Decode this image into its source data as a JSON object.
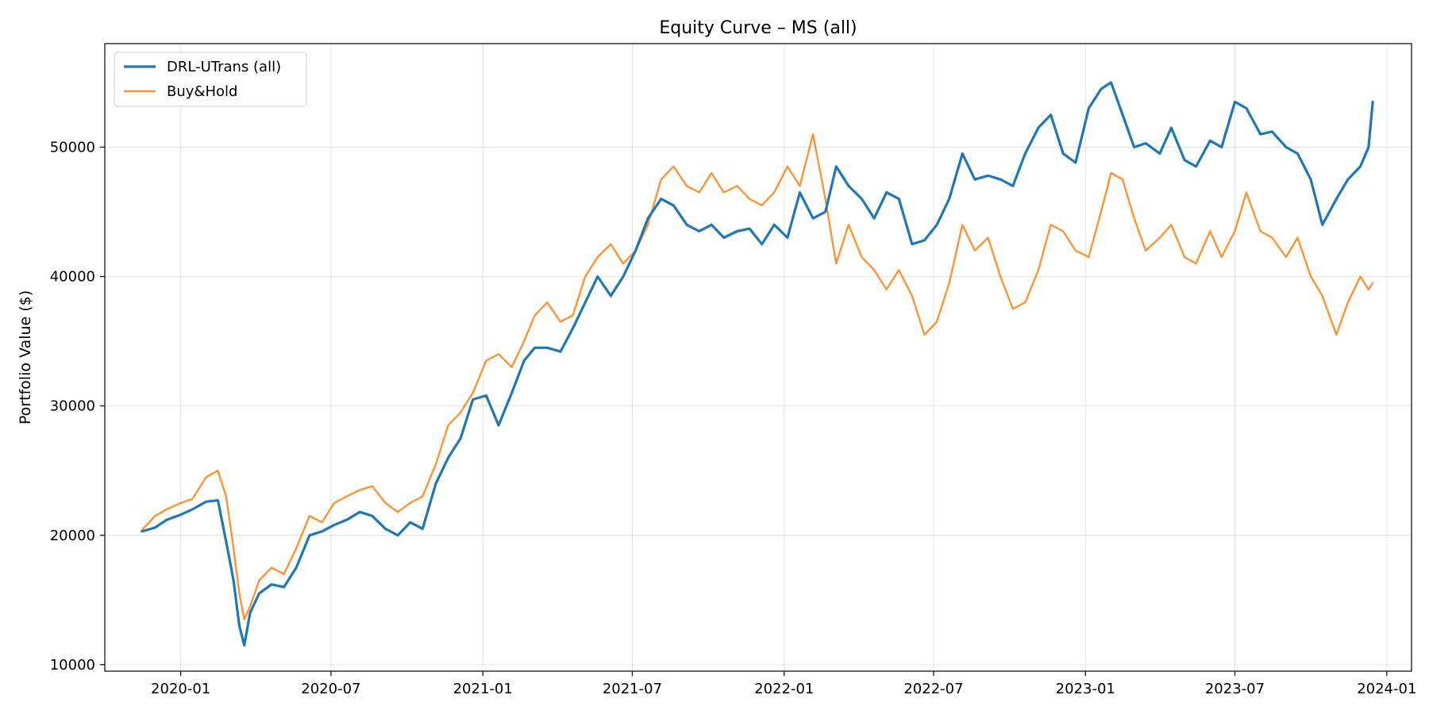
{
  "chart_data": {
    "type": "line",
    "title": "Equity Curve – MS (all)",
    "xlabel": "",
    "ylabel": "Portfolio Value ($)",
    "x_axis": "date",
    "xlim": [
      "2019-10-01",
      "2024-01-31"
    ],
    "ylim": [
      9500,
      58000
    ],
    "x_ticks": [
      "2020-01",
      "2020-07",
      "2021-01",
      "2021-07",
      "2022-01",
      "2022-07",
      "2023-01",
      "2023-07",
      "2024-01"
    ],
    "y_ticks": [
      10000,
      20000,
      30000,
      40000,
      50000
    ],
    "grid": true,
    "legend_position": "top-left",
    "series": [
      {
        "name": "DRL-UTrans (all)",
        "color": "#1f77b4",
        "points": [
          [
            "2019-11-15",
            20300
          ],
          [
            "2019-12-01",
            20600
          ],
          [
            "2019-12-15",
            21200
          ],
          [
            "2020-01-01",
            21600
          ],
          [
            "2020-01-15",
            22000
          ],
          [
            "2020-02-01",
            22600
          ],
          [
            "2020-02-15",
            22700
          ],
          [
            "2020-02-25",
            19500
          ],
          [
            "2020-03-05",
            16500
          ],
          [
            "2020-03-12",
            13000
          ],
          [
            "2020-03-18",
            11500
          ],
          [
            "2020-03-25",
            14000
          ],
          [
            "2020-04-05",
            15500
          ],
          [
            "2020-04-20",
            16200
          ],
          [
            "2020-05-05",
            16000
          ],
          [
            "2020-05-20",
            17500
          ],
          [
            "2020-06-05",
            20000
          ],
          [
            "2020-06-20",
            20300
          ],
          [
            "2020-07-05",
            20800
          ],
          [
            "2020-07-20",
            21200
          ],
          [
            "2020-08-05",
            21800
          ],
          [
            "2020-08-20",
            21500
          ],
          [
            "2020-09-05",
            20500
          ],
          [
            "2020-09-20",
            20000
          ],
          [
            "2020-10-05",
            21000
          ],
          [
            "2020-10-20",
            20500
          ],
          [
            "2020-11-05",
            24000
          ],
          [
            "2020-11-20",
            26000
          ],
          [
            "2020-12-05",
            27500
          ],
          [
            "2020-12-20",
            30500
          ],
          [
            "2021-01-05",
            30800
          ],
          [
            "2021-01-20",
            28500
          ],
          [
            "2021-02-05",
            31000
          ],
          [
            "2021-02-20",
            33500
          ],
          [
            "2021-03-05",
            34500
          ],
          [
            "2021-03-20",
            34500
          ],
          [
            "2021-04-05",
            34200
          ],
          [
            "2021-04-20",
            36000
          ],
          [
            "2021-05-05",
            38000
          ],
          [
            "2021-05-20",
            40000
          ],
          [
            "2021-06-05",
            38500
          ],
          [
            "2021-06-20",
            40000
          ],
          [
            "2021-07-05",
            42000
          ],
          [
            "2021-07-20",
            44500
          ],
          [
            "2021-08-05",
            46000
          ],
          [
            "2021-08-20",
            45500
          ],
          [
            "2021-09-05",
            44000
          ],
          [
            "2021-09-20",
            43500
          ],
          [
            "2021-10-05",
            44000
          ],
          [
            "2021-10-20",
            43000
          ],
          [
            "2021-11-05",
            43500
          ],
          [
            "2021-11-20",
            43700
          ],
          [
            "2021-12-05",
            42500
          ],
          [
            "2021-12-20",
            44000
          ],
          [
            "2022-01-05",
            43000
          ],
          [
            "2022-01-20",
            46500
          ],
          [
            "2022-02-05",
            44500
          ],
          [
            "2022-02-20",
            45000
          ],
          [
            "2022-03-05",
            48500
          ],
          [
            "2022-03-20",
            47000
          ],
          [
            "2022-04-05",
            46000
          ],
          [
            "2022-04-20",
            44500
          ],
          [
            "2022-05-05",
            46500
          ],
          [
            "2022-05-20",
            46000
          ],
          [
            "2022-06-05",
            42500
          ],
          [
            "2022-06-20",
            42800
          ],
          [
            "2022-07-05",
            44000
          ],
          [
            "2022-07-20",
            46000
          ],
          [
            "2022-08-05",
            49500
          ],
          [
            "2022-08-20",
            47500
          ],
          [
            "2022-09-05",
            47800
          ],
          [
            "2022-09-20",
            47500
          ],
          [
            "2022-10-05",
            47000
          ],
          [
            "2022-10-20",
            49500
          ],
          [
            "2022-11-05",
            51500
          ],
          [
            "2022-11-20",
            52500
          ],
          [
            "2022-12-05",
            49500
          ],
          [
            "2022-12-20",
            48800
          ],
          [
            "2023-01-05",
            53000
          ],
          [
            "2023-01-20",
            54500
          ],
          [
            "2023-02-01",
            55000
          ],
          [
            "2023-02-15",
            52500
          ],
          [
            "2023-03-01",
            50000
          ],
          [
            "2023-03-15",
            50300
          ],
          [
            "2023-04-01",
            49500
          ],
          [
            "2023-04-15",
            51500
          ],
          [
            "2023-05-01",
            49000
          ],
          [
            "2023-05-15",
            48500
          ],
          [
            "2023-06-01",
            50500
          ],
          [
            "2023-06-15",
            50000
          ],
          [
            "2023-07-01",
            53500
          ],
          [
            "2023-07-15",
            53000
          ],
          [
            "2023-08-01",
            51000
          ],
          [
            "2023-08-15",
            51200
          ],
          [
            "2023-09-01",
            50000
          ],
          [
            "2023-09-15",
            49500
          ],
          [
            "2023-10-01",
            47500
          ],
          [
            "2023-10-15",
            44000
          ],
          [
            "2023-11-01",
            46000
          ],
          [
            "2023-11-15",
            47500
          ],
          [
            "2023-11-30",
            48500
          ],
          [
            "2023-12-10",
            50000
          ],
          [
            "2023-12-15",
            53500
          ]
        ]
      },
      {
        "name": "Buy&Hold",
        "color": "#ff7f0e",
        "points": [
          [
            "2019-11-15",
            20400
          ],
          [
            "2019-12-01",
            21500
          ],
          [
            "2019-12-15",
            22000
          ],
          [
            "2020-01-01",
            22500
          ],
          [
            "2020-01-15",
            22800
          ],
          [
            "2020-02-01",
            24500
          ],
          [
            "2020-02-15",
            25000
          ],
          [
            "2020-02-25",
            23000
          ],
          [
            "2020-03-05",
            19000
          ],
          [
            "2020-03-12",
            15500
          ],
          [
            "2020-03-18",
            13500
          ],
          [
            "2020-03-25",
            14500
          ],
          [
            "2020-04-05",
            16500
          ],
          [
            "2020-04-20",
            17500
          ],
          [
            "2020-05-05",
            17000
          ],
          [
            "2020-05-20",
            19000
          ],
          [
            "2020-06-05",
            21500
          ],
          [
            "2020-06-20",
            21000
          ],
          [
            "2020-07-05",
            22500
          ],
          [
            "2020-07-20",
            23000
          ],
          [
            "2020-08-05",
            23500
          ],
          [
            "2020-08-20",
            23800
          ],
          [
            "2020-09-05",
            22500
          ],
          [
            "2020-09-20",
            21800
          ],
          [
            "2020-10-05",
            22500
          ],
          [
            "2020-10-20",
            23000
          ],
          [
            "2020-11-05",
            25500
          ],
          [
            "2020-11-20",
            28500
          ],
          [
            "2020-12-05",
            29500
          ],
          [
            "2020-12-20",
            31000
          ],
          [
            "2021-01-05",
            33500
          ],
          [
            "2021-01-20",
            34000
          ],
          [
            "2021-02-05",
            33000
          ],
          [
            "2021-02-20",
            35000
          ],
          [
            "2021-03-05",
            37000
          ],
          [
            "2021-03-20",
            38000
          ],
          [
            "2021-04-05",
            36500
          ],
          [
            "2021-04-20",
            37000
          ],
          [
            "2021-05-05",
            40000
          ],
          [
            "2021-05-20",
            41500
          ],
          [
            "2021-06-05",
            42500
          ],
          [
            "2021-06-20",
            41000
          ],
          [
            "2021-07-05",
            42000
          ],
          [
            "2021-07-20",
            44000
          ],
          [
            "2021-08-05",
            47500
          ],
          [
            "2021-08-20",
            48500
          ],
          [
            "2021-09-05",
            47000
          ],
          [
            "2021-09-20",
            46500
          ],
          [
            "2021-10-05",
            48000
          ],
          [
            "2021-10-20",
            46500
          ],
          [
            "2021-11-05",
            47000
          ],
          [
            "2021-11-20",
            46000
          ],
          [
            "2021-12-05",
            45500
          ],
          [
            "2021-12-20",
            46500
          ],
          [
            "2022-01-05",
            48500
          ],
          [
            "2022-01-20",
            47000
          ],
          [
            "2022-02-05",
            51000
          ],
          [
            "2022-02-20",
            46000
          ],
          [
            "2022-03-05",
            41000
          ],
          [
            "2022-03-20",
            44000
          ],
          [
            "2022-04-05",
            41500
          ],
          [
            "2022-04-20",
            40500
          ],
          [
            "2022-05-05",
            39000
          ],
          [
            "2022-05-20",
            40500
          ],
          [
            "2022-06-05",
            38500
          ],
          [
            "2022-06-20",
            35500
          ],
          [
            "2022-07-05",
            36500
          ],
          [
            "2022-07-20",
            39500
          ],
          [
            "2022-08-05",
            44000
          ],
          [
            "2022-08-20",
            42000
          ],
          [
            "2022-09-05",
            43000
          ],
          [
            "2022-09-20",
            40000
          ],
          [
            "2022-10-05",
            37500
          ],
          [
            "2022-10-20",
            38000
          ],
          [
            "2022-11-05",
            40500
          ],
          [
            "2022-11-20",
            44000
          ],
          [
            "2022-12-05",
            43500
          ],
          [
            "2022-12-20",
            42000
          ],
          [
            "2023-01-05",
            41500
          ],
          [
            "2023-01-20",
            45000
          ],
          [
            "2023-02-01",
            48000
          ],
          [
            "2023-02-15",
            47500
          ],
          [
            "2023-03-01",
            44500
          ],
          [
            "2023-03-15",
            42000
          ],
          [
            "2023-04-01",
            43000
          ],
          [
            "2023-04-15",
            44000
          ],
          [
            "2023-05-01",
            41500
          ],
          [
            "2023-05-15",
            41000
          ],
          [
            "2023-06-01",
            43500
          ],
          [
            "2023-06-15",
            41500
          ],
          [
            "2023-07-01",
            43500
          ],
          [
            "2023-07-15",
            46500
          ],
          [
            "2023-08-01",
            43500
          ],
          [
            "2023-08-15",
            43000
          ],
          [
            "2023-09-01",
            41500
          ],
          [
            "2023-09-15",
            43000
          ],
          [
            "2023-10-01",
            40000
          ],
          [
            "2023-10-15",
            38500
          ],
          [
            "2023-11-01",
            35500
          ],
          [
            "2023-11-15",
            38000
          ],
          [
            "2023-11-30",
            40000
          ],
          [
            "2023-12-10",
            39000
          ],
          [
            "2023-12-15",
            39500
          ]
        ]
      }
    ]
  }
}
